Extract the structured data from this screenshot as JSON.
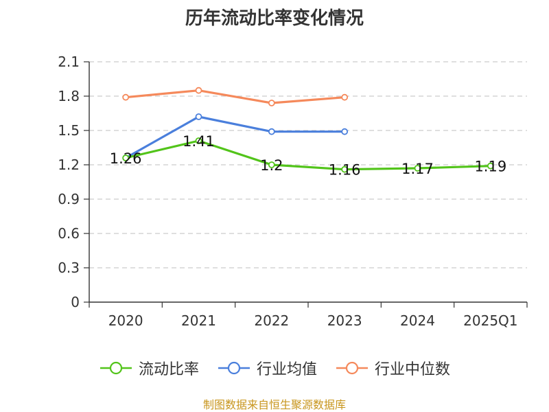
{
  "chart_data": {
    "type": "line",
    "title": "历年流动比率变化情况",
    "categories": [
      "2020",
      "2021",
      "2022",
      "2023",
      "2024",
      "2025Q1"
    ],
    "ylim": [
      0,
      2.1
    ],
    "yticks": [
      "0",
      "0.3",
      "0.6",
      "0.9",
      "1.2",
      "1.5",
      "1.8",
      "2.1"
    ],
    "grid": true,
    "legend_position": "bottom",
    "series": [
      {
        "name": "流动比率",
        "color": "#52c41a",
        "values": [
          1.26,
          1.41,
          1.2,
          1.16,
          1.17,
          1.19
        ],
        "labels": [
          "1.26",
          "1.41",
          "1.2",
          "1.16",
          "1.17",
          "1.19"
        ]
      },
      {
        "name": "行业均值",
        "color": "#4a7fdc",
        "values": [
          1.26,
          1.62,
          1.49,
          1.49,
          null,
          null
        ]
      },
      {
        "name": "行业中位数",
        "color": "#f5895b",
        "values": [
          1.79,
          1.85,
          1.74,
          1.79,
          null,
          null
        ]
      }
    ]
  },
  "source": "制图数据来自恒生聚源数据库"
}
